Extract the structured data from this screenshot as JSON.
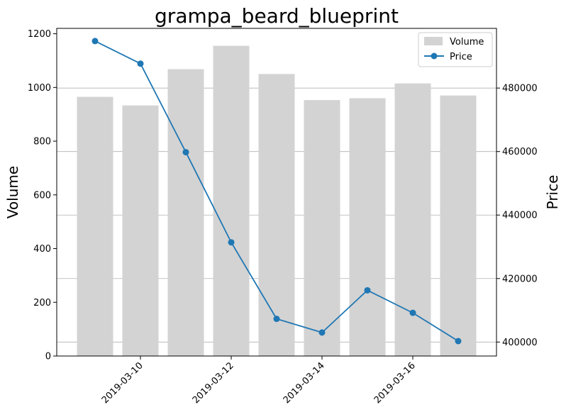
{
  "chart_data": {
    "type": "bar+line",
    "title": "grampa_beard_blueprint",
    "dates": [
      "2019-03-09",
      "2019-03-10",
      "2019-03-11",
      "2019-03-12",
      "2019-03-13",
      "2019-03-14",
      "2019-03-15",
      "2019-03-16",
      "2019-03-17"
    ],
    "x_tick_labels": [
      "2019-03-10",
      "2019-03-12",
      "2019-03-14",
      "2019-03-16"
    ],
    "series": [
      {
        "name": "Volume",
        "axis": "left",
        "kind": "bar",
        "color": "#d3d3d3",
        "values": [
          965,
          933,
          1068,
          1155,
          1050,
          953,
          960,
          1015,
          970
        ]
      },
      {
        "name": "Price",
        "axis": "right",
        "kind": "line",
        "color": "#1f77b4",
        "values": [
          494800,
          487700,
          459800,
          431400,
          407300,
          403000,
          416300,
          409200,
          400300
        ]
      }
    ],
    "left_axis": {
      "label": "Volume",
      "ylim": [
        0,
        1220
      ],
      "ticks": [
        0,
        200,
        400,
        600,
        800,
        1000,
        1200
      ]
    },
    "right_axis": {
      "label": "Price",
      "ylim": [
        395600,
        498800
      ],
      "ticks": [
        400000,
        420000,
        440000,
        460000,
        480000
      ]
    },
    "grid": "horizontal lines at right-axis ticks",
    "legend": {
      "position": "top-right",
      "entries": [
        "Volume",
        "Price"
      ]
    }
  }
}
